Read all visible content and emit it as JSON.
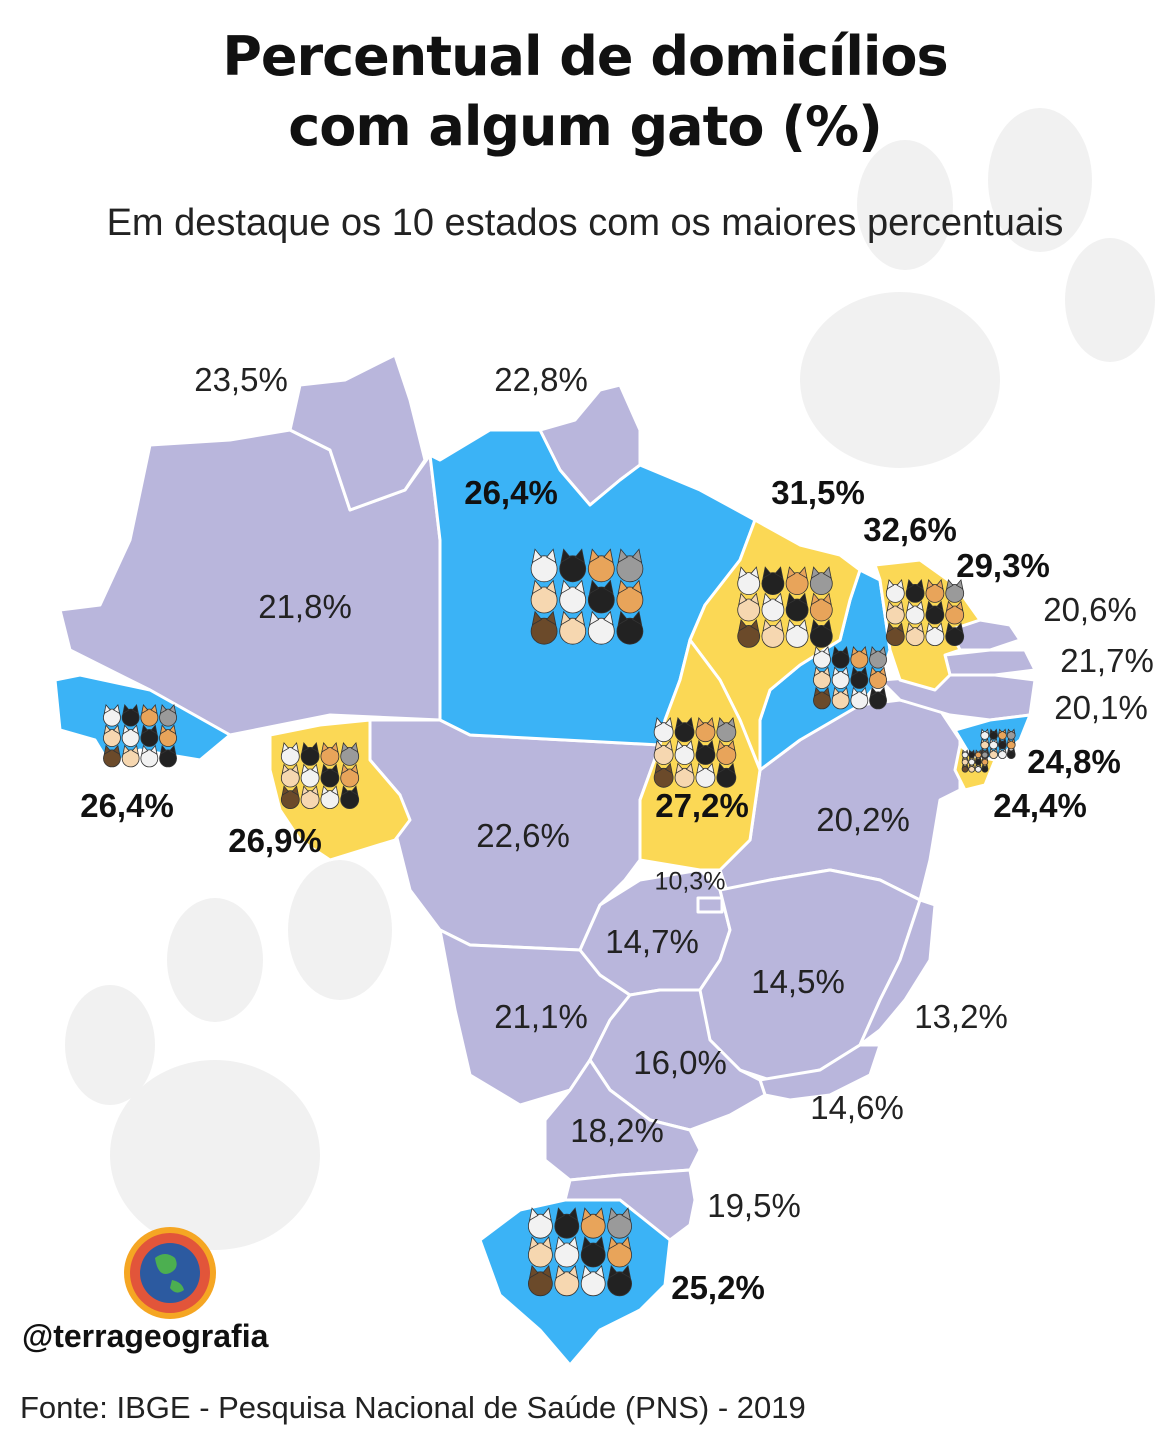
{
  "header": {
    "title_line1": "Percentual de domicílios",
    "title_line2": "com algum gato (%)",
    "subtitle": "Em destaque os 10 estados com os maiores percentuais"
  },
  "legend_colors": {
    "other_states": "#b9b6dc",
    "highlight_blue": "#3bb3f6",
    "highlight_yellow": "#fbd855",
    "state_borders": "#ffffff",
    "background_paw": "#f1f1f1"
  },
  "states": [
    {
      "code": "RR",
      "value": "23,5%",
      "highlighted": false
    },
    {
      "code": "AP",
      "value": "22,8%",
      "highlighted": false
    },
    {
      "code": "AM",
      "value": "21,8%",
      "highlighted": false
    },
    {
      "code": "PA",
      "value": "26,4%",
      "highlighted": true,
      "color": "blue"
    },
    {
      "code": "MA",
      "value": "31,5%",
      "highlighted": true,
      "color": "yellow"
    },
    {
      "code": "PI",
      "value": "32,6%",
      "highlighted": true,
      "color": "blue"
    },
    {
      "code": "CE",
      "value": "29,3%",
      "highlighted": true,
      "color": "yellow"
    },
    {
      "code": "RN",
      "value": "20,6%",
      "highlighted": false
    },
    {
      "code": "PB",
      "value": "21,7%",
      "highlighted": false
    },
    {
      "code": "PE",
      "value": "20,1%",
      "highlighted": false
    },
    {
      "code": "AL",
      "value": "24,8%",
      "highlighted": true,
      "color": "blue"
    },
    {
      "code": "SE",
      "value": "24,4%",
      "highlighted": true,
      "color": "yellow"
    },
    {
      "code": "AC",
      "value": "26,4%",
      "highlighted": true,
      "color": "blue"
    },
    {
      "code": "RO",
      "value": "26,9%",
      "highlighted": true,
      "color": "yellow"
    },
    {
      "code": "MT",
      "value": "22,6%",
      "highlighted": false
    },
    {
      "code": "TO",
      "value": "27,2%",
      "highlighted": true,
      "color": "yellow"
    },
    {
      "code": "BA",
      "value": "20,2%",
      "highlighted": false
    },
    {
      "code": "DF",
      "value": "10,3%",
      "highlighted": false
    },
    {
      "code": "GO",
      "value": "14,7%",
      "highlighted": false
    },
    {
      "code": "MG",
      "value": "14,5%",
      "highlighted": false
    },
    {
      "code": "ES",
      "value": "13,2%",
      "highlighted": false
    },
    {
      "code": "MS",
      "value": "21,1%",
      "highlighted": false
    },
    {
      "code": "SP",
      "value": "16,0%",
      "highlighted": false
    },
    {
      "code": "RJ",
      "value": "14,6%",
      "highlighted": false
    },
    {
      "code": "PR",
      "value": "18,2%",
      "highlighted": false
    },
    {
      "code": "SC",
      "value": "19,5%",
      "highlighted": false
    },
    {
      "code": "RS",
      "value": "25,2%",
      "highlighted": true,
      "color": "blue"
    }
  ],
  "icons": [
    "cat-group-icon",
    "globe-logo-icon",
    "paw-print-icon"
  ],
  "footer": {
    "handle": "@terrageografia",
    "source": "Fonte: IBGE - Pesquisa Nacional de Saúde (PNS) - 2019"
  }
}
